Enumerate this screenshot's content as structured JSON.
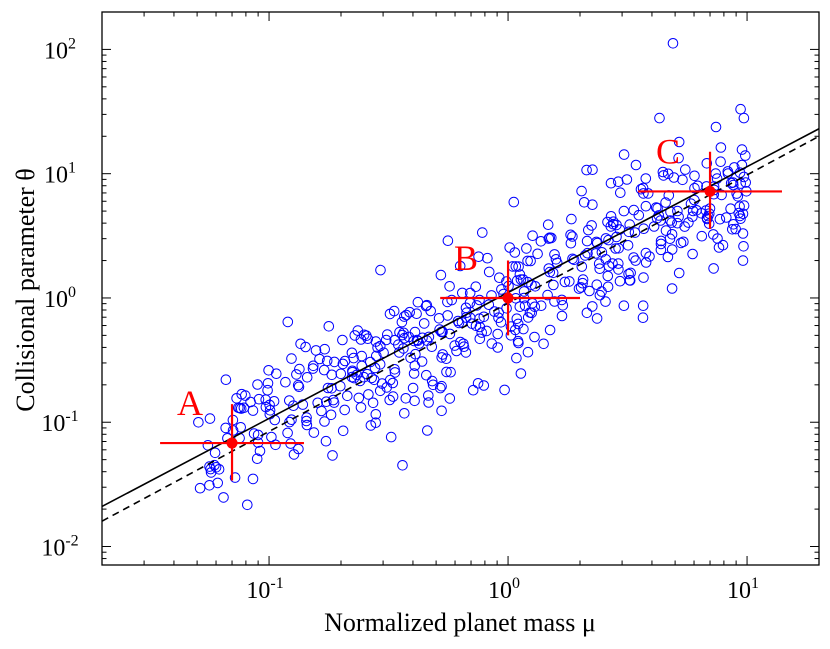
{
  "chart_data": {
    "type": "scatter",
    "title": "",
    "xlabel": "Normalized planet mass μ",
    "ylabel": "Collisional parameter θ",
    "xscale": "log",
    "yscale": "log",
    "xlim": [
      0.02,
      20
    ],
    "ylim": [
      0.0071,
      200
    ],
    "x_ticks": [
      {
        "value": 0.1,
        "label": "10",
        "exp": "-1"
      },
      {
        "value": 1,
        "label": "10",
        "exp": "0"
      },
      {
        "value": 10,
        "label": "10",
        "exp": "1"
      }
    ],
    "y_ticks": [
      {
        "value": 0.01,
        "label": "10",
        "exp": "-2"
      },
      {
        "value": 0.1,
        "label": "10",
        "exp": "-1"
      },
      {
        "value": 1,
        "label": "10",
        "exp": "0"
      },
      {
        "value": 10,
        "label": "10",
        "exp": "1"
      },
      {
        "value": 100,
        "label": "10",
        "exp": "2"
      }
    ],
    "colors": {
      "points": "#0000ff",
      "markers": "#ff0000",
      "lines": "#000000"
    },
    "lines": [
      {
        "name": "fit-solid",
        "style": "solid",
        "x": [
          0.02,
          20
        ],
        "y": [
          0.021,
          23
        ]
      },
      {
        "name": "fit-dashed",
        "style": "dashed",
        "x": [
          0.02,
          20
        ],
        "y": [
          0.016,
          20
        ]
      }
    ],
    "markers": [
      {
        "label": "A",
        "x": 0.07,
        "y": 0.068,
        "x_err": [
          0.035,
          0.14
        ],
        "y_err": [
          0.034,
          0.14
        ]
      },
      {
        "label": "B",
        "x": 1.0,
        "y": 1.0,
        "x_err": [
          0.52,
          2.0
        ],
        "y_err": [
          0.5,
          2.0
        ]
      },
      {
        "label": "C",
        "x": 7.0,
        "y": 7.2,
        "x_err": [
          3.5,
          14.0
        ],
        "y_err": [
          3.6,
          15.0
        ]
      }
    ],
    "points": {
      "name": "samples",
      "n": 520,
      "seed": 20240611,
      "x_range": [
        0.05,
        10
      ],
      "slope": 0.96,
      "scatter_dex": 0.28,
      "extra_points": [
        [
          4.9,
          112
        ],
        [
          4.3,
          28
        ],
        [
          5.2,
          18
        ],
        [
          9.4,
          33
        ],
        [
          9.7,
          28
        ],
        [
          0.066,
          0.22
        ]
      ]
    }
  }
}
